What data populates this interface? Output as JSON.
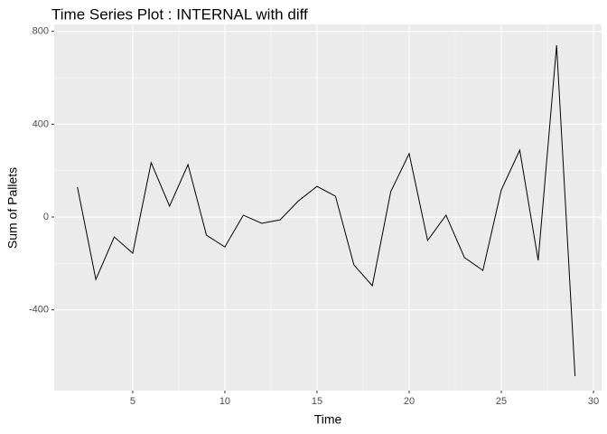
{
  "chart_data": {
    "type": "line",
    "title": "Time Series Plot : INTERNAL with diff",
    "x_label": "Time",
    "y_label": "Sum of Pallets",
    "x": [
      2,
      3,
      4,
      5,
      6,
      7,
      8,
      9,
      10,
      11,
      12,
      13,
      14,
      15,
      16,
      17,
      18,
      19,
      20,
      21,
      22,
      23,
      24,
      25,
      26,
      27,
      28,
      29
    ],
    "series": [
      {
        "name": "INTERNAL",
        "color": "#000000",
        "values": [
          129,
          -269,
          -86,
          -156,
          234,
          47,
          226,
          -78,
          -129,
          8,
          -27,
          -12,
          70,
          132,
          90,
          -206,
          -296,
          109,
          273,
          -101,
          8,
          -175,
          -230,
          117,
          288,
          -187,
          740,
          -686
        ]
      }
    ],
    "xlim": [
      0.74,
      30.44
    ],
    "xticks": [
      5,
      10,
      15,
      20,
      25,
      30
    ],
    "ylim": [
      -748,
      830
    ],
    "yticks": [
      -400,
      0,
      400,
      800
    ],
    "grid": true
  }
}
